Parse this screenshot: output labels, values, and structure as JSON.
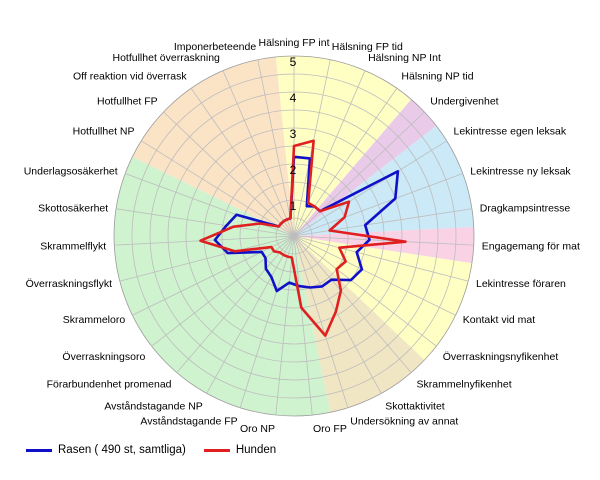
{
  "chart_data": {
    "type": "radar",
    "title": "",
    "rlim": [
      0,
      5
    ],
    "tick_labels": [
      "1",
      "2",
      "3",
      "4",
      "5"
    ],
    "categories": [
      "Hälsning FP int",
      "Hälsning FP tid",
      "Hälsning NP Int",
      "Hälsning NP tid",
      "Undergivenhet",
      "Lekintresse egen leksak",
      "Lekintresse ny leksak",
      "Dragkampsintresse",
      "Engagemang för mat",
      "Lekintresse föraren",
      "Kontakt vid mat",
      "Överraskningsnyfikenhet",
      "Skrammelnyfikenhet",
      "Skottaktivitet",
      "Undersökning av annat",
      "Oro FP",
      "Oro NP",
      "Avståndstagande FP",
      "Avståndstagande NP",
      "Förarbundenhet promenad",
      "Överraskningsoro",
      "Skrammeloro",
      "Överraskningsflykt",
      "Skrammelflykt",
      "Skottosäkerhet",
      "Underlagsosäkerhet",
      "Hotfullhet NP",
      "Hotfullhet FP",
      "Off reaktion vid överrask",
      "Hotfullhet överraskning",
      "Imponerbeteende"
    ],
    "sectors": [
      {
        "from": 0,
        "to": 3,
        "color": "#ffffc4"
      },
      {
        "from": 4,
        "to": 4,
        "color": "#e9cbe9"
      },
      {
        "from": 5,
        "to": 7,
        "color": "#cbe9f6"
      },
      {
        "from": 8,
        "to": 8,
        "color": "#f9d2e6"
      },
      {
        "from": 9,
        "to": 11,
        "color": "#ffffc4"
      },
      {
        "from": 12,
        "to": 14,
        "color": "#f1e6c4"
      },
      {
        "from": 15,
        "to": 25,
        "color": "#cff2cf"
      },
      {
        "from": 26,
        "to": 30,
        "color": "#fbe3c6"
      }
    ],
    "series": [
      {
        "name": "Rasen ( 490 st, samtliga)",
        "color": "#1010c8",
        "values": [
          2.2,
          2.2,
          0.9,
          1.0,
          1.0,
          3.4,
          3.0,
          2.0,
          2.1,
          1.8,
          2.1,
          2.0,
          1.6,
          1.6,
          1.5,
          1.4,
          1.3,
          1.6,
          1.3,
          1.2,
          1.0,
          1.0,
          1.9,
          2.2,
          1.9,
          1.7,
          0.5,
          0.5,
          0.5,
          0.5,
          0.5
        ]
      },
      {
        "name": "Hunden",
        "color": "#e02020",
        "values": [
          2.5,
          2.7,
          1.0,
          1.0,
          1.0,
          1.8,
          1.5,
          1.0,
          3.1,
          1.3,
          1.6,
          1.5,
          2.0,
          2.4,
          2.9,
          2.0,
          0.6,
          0.6,
          0.6,
          0.6,
          0.7,
          0.7,
          1.7,
          2.6,
          1.7,
          1.0,
          0.5,
          0.5,
          0.5,
          0.5,
          0.5
        ]
      }
    ]
  }
}
